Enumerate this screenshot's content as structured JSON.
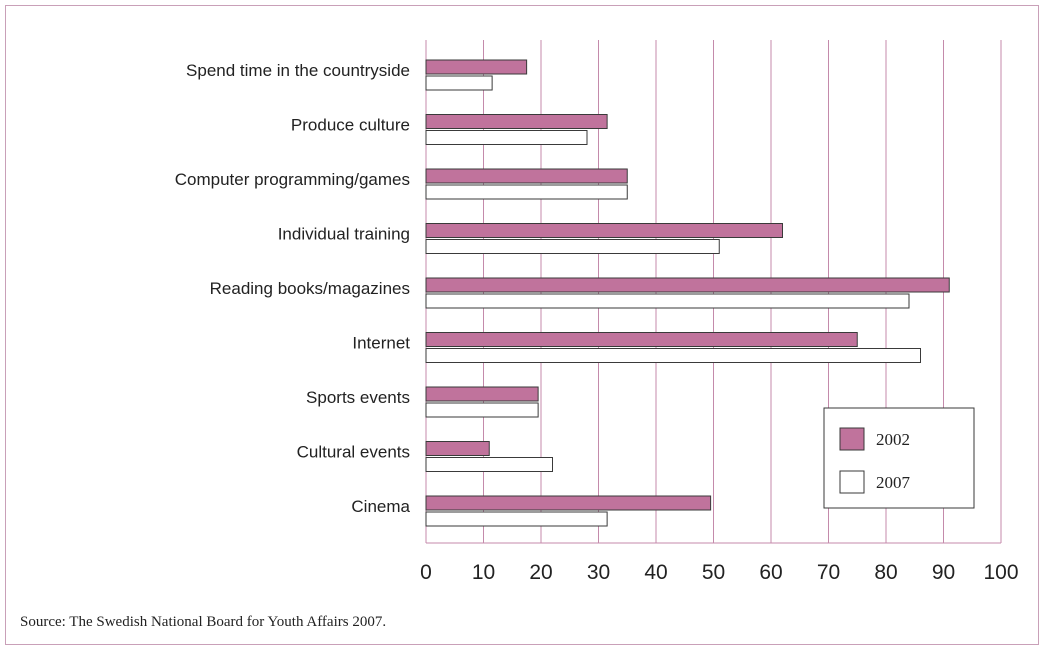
{
  "chart_data": {
    "type": "bar",
    "orientation": "horizontal",
    "categories": [
      "Spend time in the countryside",
      "Produce culture",
      "Computer programming/games",
      "Individual training",
      "Reading books/magazines",
      "Internet",
      "Sports events",
      "Cultural events",
      "Cinema"
    ],
    "series": [
      {
        "name": "2002",
        "color": "#c0739c",
        "values": [
          17.5,
          31.5,
          35,
          62,
          91,
          75,
          19.5,
          11,
          49.5
        ]
      },
      {
        "name": "2007",
        "color": "#ffffff",
        "values": [
          11.5,
          28,
          35,
          51,
          84,
          86,
          19.5,
          22,
          31.5
        ]
      }
    ],
    "xlim": [
      0,
      100
    ],
    "xticks": [
      0,
      10,
      20,
      30,
      40,
      50,
      60,
      70,
      80,
      90,
      100
    ],
    "grid": true,
    "grid_color": "#c48aab",
    "legend_position": "bottom-right",
    "title": "",
    "xlabel": "",
    "ylabel": ""
  },
  "source_note": "Source: The Swedish National Board for Youth Affairs 2007."
}
